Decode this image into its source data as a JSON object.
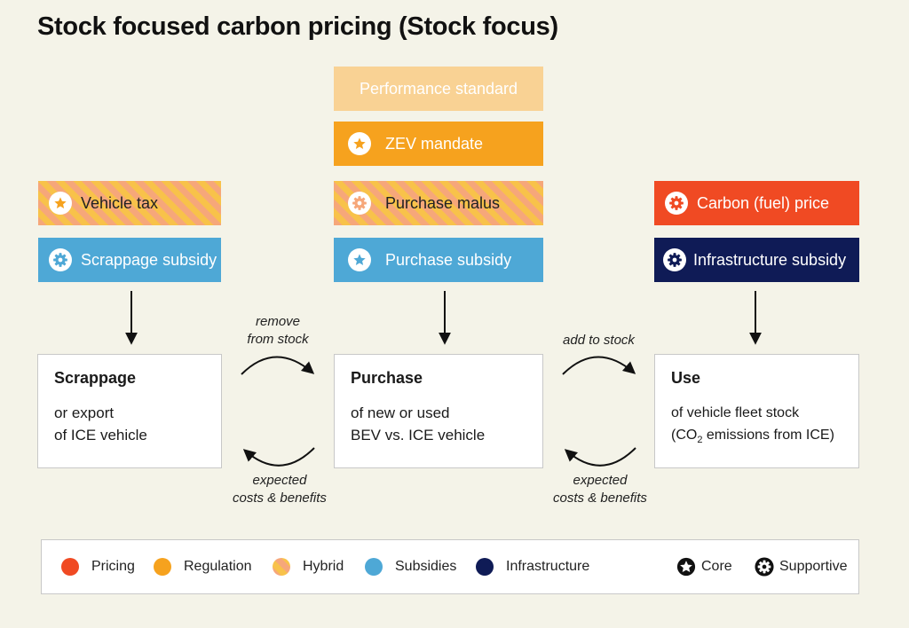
{
  "title": "Stock focused carbon pricing (Stock focus)",
  "colors": {
    "pricing": "#f04a23",
    "regulation": "#f6a21e",
    "regulation_light": "#f9d294",
    "subsidies": "#4ea8d6",
    "infrastructure": "#0f1b56",
    "hybrid_stripe_a": "#f6a77a",
    "hybrid_stripe_b": "#f8c24a"
  },
  "instruments": {
    "vehicle_tax": "Vehicle tax",
    "scrappage_subsidy": "Scrappage subsidy",
    "performance_standard": "Performance standard",
    "zev_mandate": "ZEV mandate",
    "purchase_malus": "Purchase malus",
    "purchase_subsidy": "Purchase subsidy",
    "carbon_price": "Carbon (fuel) price",
    "infrastructure_subsidy": "Infrastructure subsidy"
  },
  "stages": {
    "scrappage": {
      "heading": "Scrappage",
      "line1": "or export",
      "line2": "of ICE vehicle"
    },
    "purchase": {
      "heading": "Purchase",
      "line1": "of new or used",
      "line2": "BEV vs. ICE vehicle"
    },
    "use": {
      "heading": "Use",
      "line1": "of vehicle fleet stock",
      "line2_pre": "(CO",
      "line2_sub": "2",
      "line2_post": " emissions from ICE)"
    }
  },
  "flows": {
    "remove_line1": "remove",
    "remove_line2": "from stock",
    "add": "add to stock",
    "expected_line1": "expected",
    "expected_line2": "costs & benefits"
  },
  "legend": {
    "pricing": "Pricing",
    "regulation": "Regulation",
    "hybrid": "Hybrid",
    "subsidies": "Subsidies",
    "infrastructure": "Infrastructure",
    "core": "Core",
    "supportive": "Supportive"
  },
  "icons": {
    "core": "star-icon",
    "supportive": "gear-icon"
  }
}
